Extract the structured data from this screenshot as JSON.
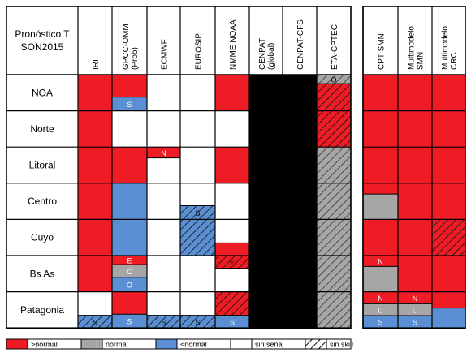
{
  "title_lines": [
    "Pronóstico T",
    "SON2015"
  ],
  "colors": {
    "normal_above": "#ee1c24",
    "normal": "#a6a6a6",
    "below": "#5b8fd3",
    "none": "#ffffff",
    "hatch": "#111111",
    "na": "#000000"
  },
  "models_left": [
    "IRI",
    "GPCC-OMM (Prob)",
    "ECMWF",
    "EUROSIP",
    "NMME NOAA",
    "CENPAT (global)",
    "CENPAT-CFS",
    "ETA-CPTEC"
  ],
  "models_right": [
    "CPT SMN",
    "Multimodelo SMN",
    "Multimodelo CRC"
  ],
  "regions": [
    "NOA",
    "Norte",
    "Litoral",
    "Centro",
    "Cuyo",
    "Bs As",
    "Patagonia"
  ],
  "legend": [
    {
      "label": ">normal",
      "fill": "red"
    },
    {
      "label": "normal",
      "fill": "gray"
    },
    {
      "label": "<normal",
      "fill": "blue"
    },
    {
      "label": "sin señal",
      "fill": "white"
    },
    {
      "label": "sin skill",
      "fill": "hatch"
    }
  ],
  "cells": {
    "IRI": [
      [
        [
          "red"
        ]
      ],
      [
        [
          "red"
        ]
      ],
      [
        [
          "red"
        ]
      ],
      [
        [
          "red"
        ]
      ],
      [
        [
          "red"
        ]
      ],
      [
        [
          "red"
        ]
      ],
      [
        [
          "white",
          0.65
        ],
        [
          "hatch-blue",
          0.35,
          "S"
        ]
      ]
    ],
    "GPCC": [
      [
        [
          "red",
          0.62
        ],
        [
          "blue",
          0.38,
          "S"
        ]
      ],
      [
        [
          "white"
        ]
      ],
      [
        [
          "red"
        ]
      ],
      [
        [
          "blue"
        ]
      ],
      [
        [
          "blue"
        ]
      ],
      [
        [
          "red",
          0.25,
          "E"
        ],
        [
          "gray",
          0.35,
          "C"
        ],
        [
          "blue",
          0.4,
          "O"
        ]
      ],
      [
        [
          "red",
          0.62
        ],
        [
          "blue",
          0.38,
          "S"
        ]
      ]
    ],
    "ECMWF": [
      [
        [
          "white"
        ]
      ],
      [
        [
          "white"
        ]
      ],
      [
        [
          "red",
          0.3,
          "N"
        ],
        [
          "white",
          0.7
        ]
      ],
      [
        [
          "white"
        ]
      ],
      [
        [
          "white"
        ]
      ],
      [
        [
          "white"
        ]
      ],
      [
        [
          "white",
          0.65
        ],
        [
          "hatch-blue",
          0.35,
          "S"
        ]
      ]
    ],
    "EUROSIP": [
      [
        [
          "white"
        ]
      ],
      [
        [
          "white"
        ]
      ],
      [
        [
          "white"
        ]
      ],
      [
        [
          "white",
          0.62
        ],
        [
          "hatch-blue",
          0.38,
          "S"
        ]
      ],
      [
        [
          "hatch-blue"
        ]
      ],
      [
        [
          "white"
        ]
      ],
      [
        [
          "white",
          0.65
        ],
        [
          "hatch-blue",
          0.35,
          "S"
        ]
      ]
    ],
    "NMME": [
      [
        [
          "red"
        ]
      ],
      [
        [
          "white"
        ]
      ],
      [
        [
          "red"
        ]
      ],
      [
        [
          "white"
        ]
      ],
      [
        [
          "white",
          0.65
        ],
        [
          "red",
          0.35
        ]
      ],
      [
        [
          "hatch-red",
          0.35,
          "E"
        ],
        [
          "white",
          0.65
        ]
      ],
      [
        [
          "hatch-red",
          0.65
        ],
        [
          "blue",
          0.35,
          "S"
        ]
      ]
    ],
    "CENPAT_G": [
      [
        [
          "black"
        ]
      ],
      [
        [
          "black"
        ]
      ],
      [
        [
          "black"
        ]
      ],
      [
        [
          "black"
        ]
      ],
      [
        [
          "black"
        ]
      ],
      [
        [
          "black"
        ]
      ],
      [
        [
          "black"
        ]
      ]
    ],
    "CENPAT_CFS": [
      [
        [
          "black"
        ]
      ],
      [
        [
          "black"
        ]
      ],
      [
        [
          "black"
        ]
      ],
      [
        [
          "black"
        ]
      ],
      [
        [
          "black"
        ]
      ],
      [
        [
          "black"
        ]
      ],
      [
        [
          "black"
        ]
      ]
    ],
    "ETA": [
      [
        [
          "hatch-gray",
          0.25,
          "O"
        ],
        [
          "hatch-red",
          0.75
        ]
      ],
      [
        [
          "hatch-red"
        ]
      ],
      [
        [
          "hatch-gray"
        ]
      ],
      [
        [
          "hatch-gray"
        ]
      ],
      [
        [
          "hatch-gray"
        ]
      ],
      [
        [
          "hatch-gray"
        ]
      ],
      [
        [
          "hatch-gray"
        ]
      ]
    ],
    "CPT": [
      [
        [
          "red"
        ]
      ],
      [
        [
          "red"
        ]
      ],
      [
        [
          "red"
        ]
      ],
      [
        [
          "red",
          0.3
        ],
        [
          "gray",
          0.7
        ]
      ],
      [
        [
          "red"
        ]
      ],
      [
        [
          "red",
          0.3,
          "N"
        ],
        [
          "gray",
          0.7
        ]
      ],
      [
        [
          "red",
          0.33,
          "N"
        ],
        [
          "gray",
          0.33,
          "C"
        ],
        [
          "blue",
          0.34,
          "S"
        ]
      ]
    ],
    "MMSMN": [
      [
        [
          "red"
        ]
      ],
      [
        [
          "red"
        ]
      ],
      [
        [
          "red"
        ]
      ],
      [
        [
          "red"
        ]
      ],
      [
        [
          "red"
        ]
      ],
      [
        [
          "red"
        ]
      ],
      [
        [
          "red",
          0.33,
          "N"
        ],
        [
          "gray",
          0.33,
          "C"
        ],
        [
          "blue",
          0.34,
          "S"
        ]
      ]
    ],
    "MMCRC": [
      [
        [
          "red"
        ]
      ],
      [
        [
          "red"
        ]
      ],
      [
        [
          "red"
        ]
      ],
      [
        [
          "red"
        ]
      ],
      [
        [
          "hatch-red"
        ]
      ],
      [
        [
          "red"
        ]
      ],
      [
        [
          "red",
          0.45
        ],
        [
          "blue",
          0.55
        ]
      ]
    ]
  }
}
